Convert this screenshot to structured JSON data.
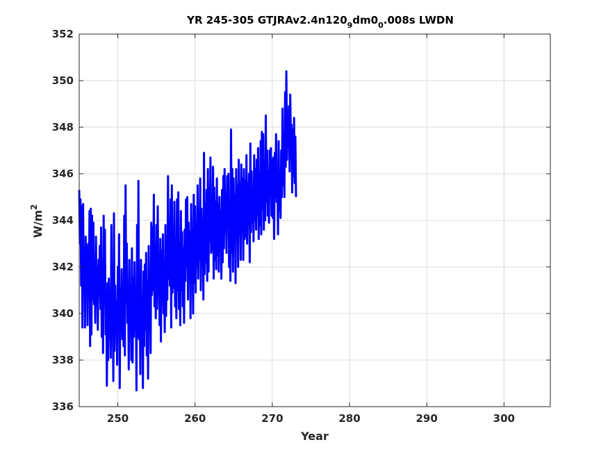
{
  "chart_data": {
    "type": "line",
    "title": {
      "prefix": "YR 245-305 GTJRAv2.4n120",
      "sub1": "9",
      "mid": "dm0",
      "sub2": "0",
      "suffix": ".008s LWDN"
    },
    "xlabel": "Year",
    "ylabel": {
      "base": "W/m",
      "sup": "2"
    },
    "xlim": [
      245,
      306
    ],
    "ylim": [
      336,
      352
    ],
    "xticks": [
      250,
      260,
      270,
      280,
      290,
      300
    ],
    "yticks": [
      336,
      338,
      340,
      342,
      344,
      346,
      348,
      350,
      352
    ],
    "grid": true,
    "series": [
      {
        "color": "#0000ff",
        "x_start": 245.0,
        "x_step": 0.0833,
        "y": [
          345.3,
          343.0,
          344.9,
          341.2,
          344.6,
          339.4,
          344.7,
          341.3,
          342.8,
          339.4,
          343.3,
          341.8,
          342.9,
          339.5,
          343.0,
          341.0,
          344.4,
          338.6,
          344.5,
          339.1,
          344.2,
          340.6,
          343.9,
          340.4,
          342.2,
          339.6,
          343.3,
          340.3,
          342.0,
          339.3,
          342.3,
          340.8,
          342.9,
          340.2,
          343.7,
          339.0,
          342.2,
          338.3,
          344.2,
          340.4,
          343.6,
          339.1,
          340.9,
          336.9,
          341.3,
          338.0,
          341.5,
          339.0,
          340.9,
          338.1,
          343.8,
          339.2,
          340.8,
          337.1,
          344.3,
          338.4,
          341.2,
          339.1,
          340.5,
          337.8,
          342.0,
          339.3,
          343.4,
          336.8,
          341.0,
          339.4,
          341.9,
          338.9,
          341.1,
          338.6,
          344.2,
          338.2,
          345.5,
          340.5,
          343.0,
          339.6,
          341.1,
          337.6,
          342.3,
          339.4,
          340.8,
          338.0,
          342.8,
          337.9,
          341.5,
          339.0,
          342.2,
          339.3,
          341.0,
          336.7,
          343.8,
          339.0,
          345.7,
          338.9,
          341.2,
          337.4,
          342.3,
          339.2,
          340.6,
          336.8,
          341.8,
          338.6,
          342.1,
          339.3,
          342.6,
          338.2,
          341.4,
          337.2,
          342.9,
          339.9,
          340.9,
          338.3,
          343.9,
          340.8,
          343.7,
          341.0,
          345.1,
          340.3,
          342.9,
          339.8,
          343.8,
          340.2,
          344.6,
          340.8,
          342.1,
          339.5,
          343.2,
          338.8,
          342.7,
          340.4,
          343.4,
          340.0,
          342.0,
          339.2,
          343.8,
          339.9,
          342.5,
          340.6,
          345.9,
          341.5,
          343.8,
          341.2,
          344.9,
          339.4,
          345.5,
          340.9,
          343.6,
          341.1,
          344.8,
          340.3,
          343.1,
          339.8,
          344.9,
          341.0,
          345.2,
          340.2,
          342.9,
          339.5,
          344.4,
          341.0,
          343.5,
          340.3,
          342.8,
          339.6,
          343.6,
          341.4,
          344.9,
          342.0,
          345.0,
          340.6,
          343.9,
          341.8,
          343.5,
          339.8,
          344.7,
          342.2,
          343.1,
          340.0,
          345.1,
          341.3,
          344.6,
          340.9,
          343.7,
          342.0,
          345.5,
          341.5,
          344.4,
          342.3,
          345.8,
          341.0,
          344.5,
          342.8,
          344.0,
          340.6,
          346.9,
          341.7,
          344.7,
          342.2,
          345.3,
          341.4,
          346.2,
          341.8,
          345.4,
          343.1,
          346.7,
          342.6,
          345.0,
          342.7,
          346.3,
          341.5,
          345.4,
          342.3,
          344.8,
          341.9,
          345.8,
          342.5,
          344.7,
          341.8,
          345.0,
          342.7,
          344.4,
          341.5,
          345.3,
          342.2,
          345.9,
          342.8,
          346.2,
          343.5,
          345.1,
          342.6,
          345.9,
          343.9,
          346.0,
          342.0,
          344.8,
          341.4,
          347.9,
          342.6,
          346.2,
          341.8,
          345.8,
          343.4,
          345.1,
          341.3,
          346.2,
          343.2,
          345.5,
          342.0,
          346.6,
          343.4,
          345.6,
          342.3,
          346.4,
          343.5,
          345.8,
          342.3,
          346.2,
          343.2,
          345.7,
          343.3,
          346.8,
          343.0,
          345.6,
          344.2,
          346.0,
          342.2,
          347.3,
          343.5,
          346.1,
          343.9,
          345.3,
          343.1,
          346.8,
          344.0,
          346.2,
          343.6,
          346.6,
          344.2,
          347.1,
          343.2,
          346.0,
          343.8,
          347.4,
          343.4,
          347.8,
          344.5,
          347.7,
          343.6,
          346.5,
          344.0,
          348.5,
          344.8,
          347.0,
          344.2,
          346.1,
          343.9,
          347.0,
          345.6,
          347.1,
          344.2,
          346.6,
          344.1,
          346.7,
          343.2,
          346.9,
          345.0,
          347.7,
          344.8,
          346.0,
          343.4,
          347.4,
          344.4,
          345.8,
          344.1,
          347.0,
          345.0,
          348.8,
          345.5,
          347.6,
          345.0,
          349.5,
          346.3,
          350.4,
          346.6,
          348.5,
          347.2,
          348.9,
          346.1,
          349.4,
          347.5,
          348.1,
          345.2,
          347.9,
          345.9,
          348.4,
          345.6,
          347.6,
          345.0
        ]
      }
    ]
  }
}
